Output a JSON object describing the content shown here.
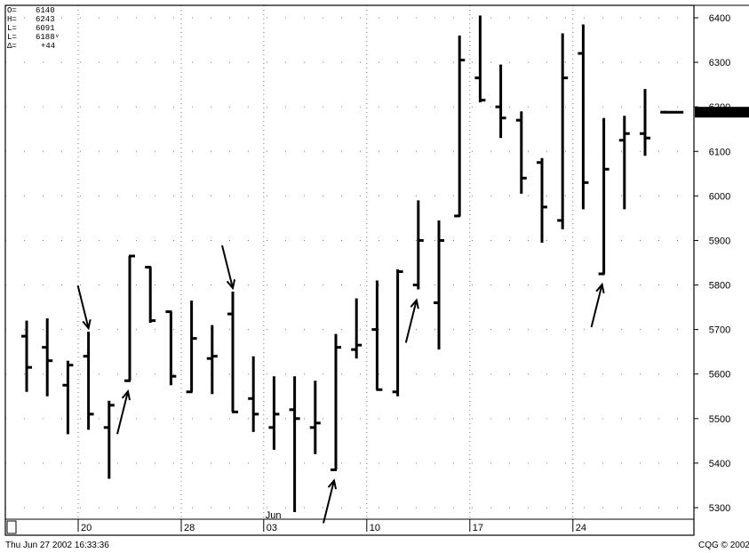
{
  "ohlc_box": [
    {
      "label": "O=",
      "value": "6140"
    },
    {
      "label": "H=",
      "value": "6243"
    },
    {
      "label": "L=",
      "value": "6091"
    },
    {
      "label": "L=",
      "value": "6188ᵛ"
    },
    {
      "label": "Δ=",
      "value": "+44"
    }
  ],
  "footer": {
    "timestamp": "Thu Jun 27 2002 16:33:36",
    "brand": "CQG © 2002"
  },
  "chart_data": {
    "type": "ohlc-bar",
    "y_axis": {
      "range": [
        5260,
        6440
      ],
      "ticks": [
        6400,
        6300,
        6200,
        6100,
        6000,
        5900,
        5800,
        5700,
        5600,
        5500,
        5400,
        5300
      ],
      "position": "right"
    },
    "x_axis": {
      "date_labels": [
        {
          "index": 3,
          "text": "20"
        },
        {
          "index": 8,
          "text": "28"
        },
        {
          "index": 12,
          "text": "03"
        },
        {
          "index": 17,
          "text": "10"
        },
        {
          "index": 22,
          "text": "17"
        },
        {
          "index": 27,
          "text": "24"
        }
      ],
      "month_label": {
        "index": 12,
        "text": "Jun"
      }
    },
    "grid": "dotted",
    "last_price": {
      "value": 6188,
      "text": "6188"
    },
    "bars": [
      {
        "o": 5685,
        "h": 5720,
        "l": 5560,
        "c": 5615
      },
      {
        "o": 5660,
        "h": 5725,
        "l": 5550,
        "c": 5630
      },
      {
        "o": 5575,
        "h": 5630,
        "l": 5465,
        "c": 5620
      },
      {
        "o": 5640,
        "h": 5695,
        "l": 5475,
        "c": 5510
      },
      {
        "o": 5480,
        "h": 5540,
        "l": 5365,
        "c": 5530
      },
      {
        "o": 5585,
        "h": 5865,
        "l": 5585,
        "c": 5865
      },
      {
        "o": 5840,
        "h": 5840,
        "l": 5715,
        "c": 5720
      },
      {
        "o": 5740,
        "h": 5740,
        "l": 5575,
        "c": 5595
      },
      {
        "o": 5560,
        "h": 5765,
        "l": 5560,
        "c": 5680
      },
      {
        "o": 5635,
        "h": 5710,
        "l": 5555,
        "c": 5640
      },
      {
        "o": 5735,
        "h": 5785,
        "l": 5515,
        "c": 5515
      },
      {
        "o": 5545,
        "h": 5640,
        "l": 5470,
        "c": 5510
      },
      {
        "o": 5480,
        "h": 5595,
        "l": 5430,
        "c": 5510
      },
      {
        "o": 5520,
        "h": 5595,
        "l": 5290,
        "c": 5500
      },
      {
        "o": 5480,
        "h": 5585,
        "l": 5420,
        "c": 5490
      },
      {
        "o": 5385,
        "h": 5690,
        "l": 5385,
        "c": 5660
      },
      {
        "o": 5655,
        "h": 5770,
        "l": 5635,
        "c": 5665
      },
      {
        "o": 5700,
        "h": 5810,
        "l": 5565,
        "c": 5565
      },
      {
        "o": 5560,
        "h": 5835,
        "l": 5550,
        "c": 5830
      },
      {
        "o": 5800,
        "h": 5990,
        "l": 5790,
        "c": 5900
      },
      {
        "o": 5760,
        "h": 5945,
        "l": 5655,
        "c": 5900
      },
      {
        "o": 5955,
        "h": 6360,
        "l": 5955,
        "c": 6305
      },
      {
        "o": 6265,
        "h": 6405,
        "l": 6210,
        "c": 6215
      },
      {
        "o": 6200,
        "h": 6295,
        "l": 6130,
        "c": 6175
      },
      {
        "o": 6170,
        "h": 6190,
        "l": 6005,
        "c": 6040
      },
      {
        "o": 6075,
        "h": 6085,
        "l": 5895,
        "c": 5975
      },
      {
        "o": 5945,
        "h": 6365,
        "l": 5925,
        "c": 6265
      },
      {
        "o": 6320,
        "h": 6385,
        "l": 5970,
        "c": 6030
      },
      {
        "o": 5825,
        "h": 6175,
        "l": 5825,
        "c": 6060
      },
      {
        "o": 6125,
        "h": 6180,
        "l": 5970,
        "c": 6140
      },
      {
        "o": 6140,
        "h": 6240,
        "l": 6090,
        "c": 6130
      },
      {
        "o": 6188,
        "h": 6188,
        "l": 6188,
        "c": 6188
      }
    ],
    "annotations": [
      {
        "type": "arrow-down",
        "bar": 3
      },
      {
        "type": "arrow-up",
        "bar": 5
      },
      {
        "type": "arrow-down",
        "bar": 10
      },
      {
        "type": "arrow-up",
        "bar": 15
      },
      {
        "type": "arrow-up",
        "bar": 19
      },
      {
        "type": "arrow-up",
        "bar": 28
      }
    ]
  }
}
